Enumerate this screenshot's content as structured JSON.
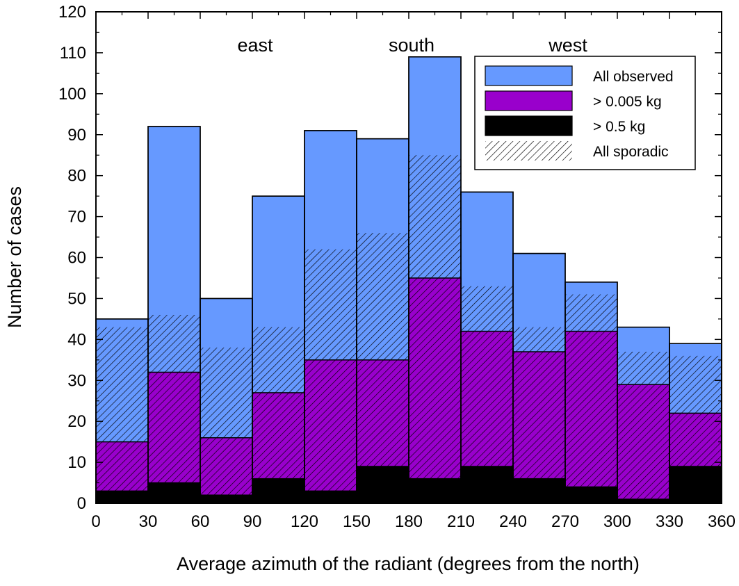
{
  "chart_data": {
    "type": "bar",
    "xlabel": "Average azimuth of the radiant (degrees from the north)",
    "ylabel": "Number of cases",
    "xlim": [
      0,
      360
    ],
    "ylim": [
      0,
      120
    ],
    "x_ticks": [
      0,
      30,
      60,
      90,
      120,
      150,
      180,
      210,
      240,
      270,
      300,
      330,
      360
    ],
    "y_ticks": [
      0,
      10,
      20,
      30,
      40,
      50,
      60,
      70,
      80,
      90,
      100,
      110,
      120
    ],
    "bin_edges": [
      0,
      30,
      60,
      90,
      120,
      150,
      180,
      210,
      240,
      270,
      300,
      330,
      360
    ],
    "series": [
      {
        "name": "All observed",
        "color": "#6699ff",
        "style": "fill",
        "values": [
          45,
          92,
          50,
          75,
          91,
          89,
          109,
          76,
          61,
          54,
          43,
          39
        ]
      },
      {
        "name": "> 0.005 kg",
        "color": "#9900cc",
        "style": "fill",
        "values": [
          15,
          32,
          16,
          27,
          35,
          35,
          55,
          42,
          37,
          42,
          29,
          22
        ]
      },
      {
        "name": "> 0.5 kg",
        "color": "#000000",
        "style": "fill",
        "values": [
          3,
          5,
          2,
          6,
          3,
          9,
          6,
          9,
          6,
          4,
          1,
          9
        ]
      },
      {
        "name": "All sporadic",
        "color": "#000000",
        "style": "hatch",
        "values": [
          43,
          46,
          38,
          43,
          62,
          66,
          85,
          53,
          43,
          51,
          37,
          36
        ]
      }
    ],
    "annotations": [
      {
        "text": "east",
        "x": 90
      },
      {
        "text": "south",
        "x": 180
      },
      {
        "text": "west",
        "x": 270
      }
    ],
    "legend_position": "top-right",
    "grid": false
  }
}
